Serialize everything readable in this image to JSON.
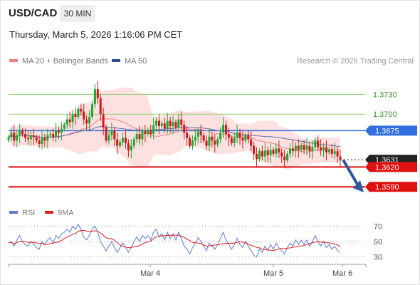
{
  "header": {
    "symbol": "USD/CAD",
    "timeframe": "30 MIN",
    "datetime": "Thursday, March 5, 2026 1:16:06 PM CET"
  },
  "legend": {
    "main": [
      {
        "label": "MA 20 + Bollinger Bands",
        "color": "#f08080"
      },
      {
        "label": "MA 50",
        "color": "#2a4f8f"
      }
    ],
    "rsi": [
      {
        "label": "RSI",
        "color": "#5b7bd5"
      },
      {
        "label": "9MA",
        "color": "#e02020"
      }
    ]
  },
  "credit": "Research © 2026 Trading Central",
  "colors": {
    "up": "#19a832",
    "down": "#d01919",
    "resistance": "#8fcf6f",
    "pivot": "#2f6fe0",
    "support": "#e01010",
    "bollinger": "#fde0e0",
    "last": "#222222",
    "arrow": "#2c5a9a"
  },
  "chart_data": [
    {
      "type": "candlestick",
      "y_range": [
        1.356,
        1.3765
      ],
      "x_labels": [
        "Mar 4",
        "Mar 5",
        "Mar 6"
      ],
      "levels": [
        {
          "value": 1.373,
          "label": "1.3730",
          "kind": "resistance"
        },
        {
          "value": 1.37,
          "label": "1.3700",
          "kind": "resistance"
        },
        {
          "value": 1.3675,
          "label": "1.3675",
          "kind": "pivot"
        },
        {
          "value": 1.3631,
          "label": "1.3631",
          "kind": "last"
        },
        {
          "value": 1.362,
          "label": "1.3620",
          "kind": "support"
        },
        {
          "value": 1.359,
          "label": "1.3590",
          "kind": "support"
        }
      ],
      "closes": [
        1.3665,
        1.3672,
        1.366,
        1.3668,
        1.3675,
        1.367,
        1.3664,
        1.3662,
        1.3668,
        1.3665,
        1.366,
        1.3655,
        1.3664,
        1.366,
        1.3668,
        1.367,
        1.3665,
        1.3675,
        1.3672,
        1.3678,
        1.3684,
        1.3692,
        1.3688,
        1.37,
        1.3696,
        1.3708,
        1.3704,
        1.3692,
        1.3686,
        1.3696,
        1.3715,
        1.3738,
        1.3724,
        1.37,
        1.368,
        1.366,
        1.3668,
        1.3675,
        1.3662,
        1.3652,
        1.3658,
        1.3664,
        1.3656,
        1.3645,
        1.3652,
        1.3662,
        1.367,
        1.3662,
        1.3674,
        1.367,
        1.3676,
        1.367,
        1.3683,
        1.369,
        1.3682,
        1.3686,
        1.3678,
        1.369,
        1.3682,
        1.3688,
        1.368,
        1.3692,
        1.3684,
        1.3672,
        1.3664,
        1.3652,
        1.366,
        1.3666,
        1.3674,
        1.3668,
        1.366,
        1.3652,
        1.3666,
        1.366,
        1.3654,
        1.3662,
        1.3672,
        1.3684,
        1.367,
        1.3664,
        1.3656,
        1.3664,
        1.3672,
        1.3664,
        1.366,
        1.3668,
        1.3662,
        1.3652,
        1.364,
        1.3632,
        1.3644,
        1.3636,
        1.3645,
        1.3638,
        1.3646,
        1.364,
        1.3648,
        1.3642,
        1.3636,
        1.363,
        1.364,
        1.3648,
        1.3644,
        1.3652,
        1.3646,
        1.3653,
        1.3646,
        1.3652,
        1.3644,
        1.365,
        1.366,
        1.365,
        1.3645,
        1.365,
        1.3642,
        1.3647,
        1.364,
        1.3644,
        1.3636,
        1.3631
      ]
    },
    {
      "type": "line",
      "title": "RSI",
      "y_ticks": [
        70,
        50,
        30
      ],
      "y_range": [
        25,
        75
      ],
      "rsi": [
        48,
        50,
        44,
        52,
        58,
        50,
        46,
        44,
        50,
        47,
        42,
        40,
        50,
        46,
        52,
        55,
        48,
        58,
        54,
        60,
        62,
        66,
        62,
        70,
        66,
        72,
        66,
        56,
        52,
        58,
        66,
        70,
        62,
        50,
        44,
        38,
        44,
        50,
        42,
        36,
        42,
        48,
        42,
        36,
        42,
        50,
        56,
        50,
        58,
        54,
        58,
        52,
        62,
        66,
        56,
        60,
        52,
        62,
        54,
        60,
        52,
        62,
        54,
        44,
        40,
        34,
        42,
        48,
        55,
        50,
        44,
        38,
        48,
        44,
        40,
        46,
        54,
        62,
        52,
        46,
        40,
        46,
        54,
        46,
        42,
        50,
        44,
        38,
        32,
        30,
        40,
        36,
        44,
        38,
        46,
        40,
        48,
        42,
        38,
        34,
        42,
        48,
        44,
        52,
        46,
        52,
        46,
        52,
        44,
        50,
        58,
        50,
        44,
        50,
        42,
        46,
        40,
        44,
        38,
        36
      ]
    }
  ]
}
